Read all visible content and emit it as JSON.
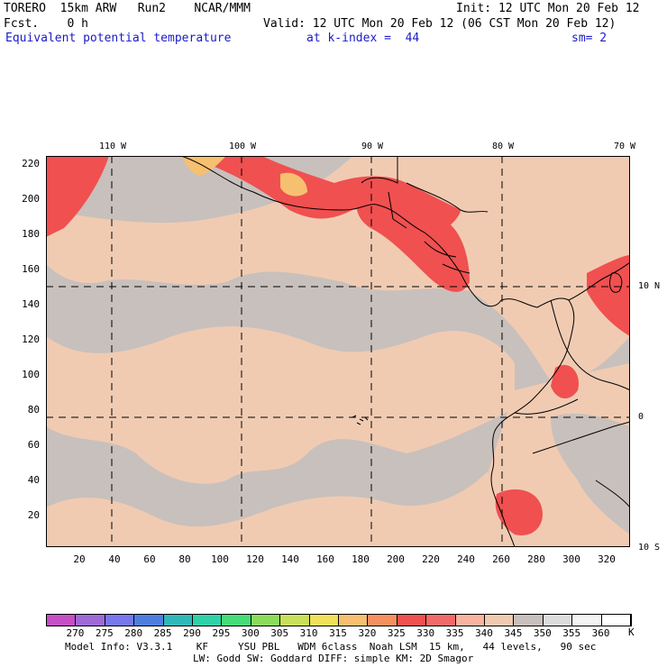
{
  "header": {
    "model": "TORERO  15km ARW   Run2    NCAR/MMM",
    "init": "Init: 12 UTC Mon 20 Feb 12",
    "fcst": "Fcst.    0 h",
    "valid": "Valid: 12 UTC Mon 20 Feb 12 (06 CST Mon 20 Feb 12)",
    "field": "Equivalent potential temperature",
    "level": "at k-index =  44",
    "smoothing": "sm= 2"
  },
  "axes": {
    "y_ticks": [
      "220",
      "200",
      "180",
      "160",
      "140",
      "120",
      "100",
      "80",
      "60",
      "40",
      "20"
    ],
    "x_ticks": [
      "20",
      "40",
      "60",
      "80",
      "100",
      "120",
      "140",
      "160",
      "180",
      "200",
      "220",
      "240",
      "260",
      "280",
      "300",
      "320"
    ],
    "lon_labels": [
      "110 W",
      "100 W",
      "90 W",
      "80 W",
      "70 W"
    ],
    "lat_labels": [
      "10 N",
      "0",
      "10 S"
    ]
  },
  "colorbar": {
    "labels": [
      "270",
      "275",
      "280",
      "285",
      "290",
      "295",
      "300",
      "305",
      "310",
      "315",
      "320",
      "325",
      "330",
      "335",
      "340",
      "345",
      "350",
      "355",
      "360"
    ],
    "unit": "K",
    "colors": [
      "#c64fc6",
      "#9e6ad8",
      "#7777ee",
      "#4e7fe0",
      "#30b8b8",
      "#2fd2a8",
      "#46dc78",
      "#8adc5a",
      "#c8e05a",
      "#f0e05a",
      "#f7c070",
      "#f79060",
      "#f05050",
      "#f06a6a",
      "#f8b4a0",
      "#f0cbb2",
      "#c8c0bc",
      "#dcdcdc",
      "#f4f4f4",
      "#ffffff"
    ]
  },
  "footer": {
    "line1": "Model Info: V3.3.1    KF     YSU PBL   WDM 6class  Noah LSM  15 km,   44 levels,   90 sec",
    "line2": "LW: Godd SW: Goddard DIFF: simple KM: 2D Smagor"
  },
  "map": {
    "background_color": "#c8c0bc",
    "warm_color": "#f0cbb2",
    "hot_color": "#f05050",
    "peak_color": "#f7c070"
  }
}
